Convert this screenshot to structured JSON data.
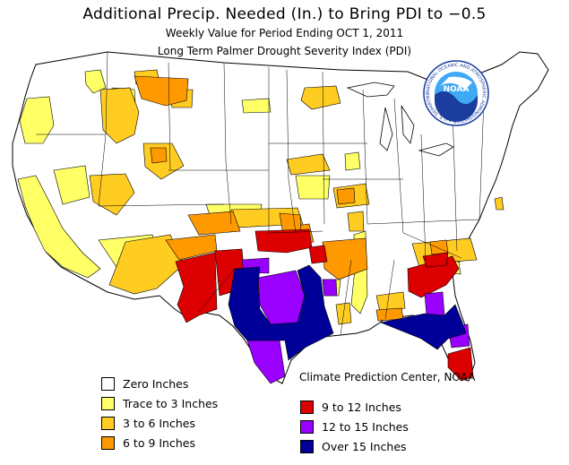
{
  "header": {
    "title": "Additional Precip. Needed (In.) to Bring PDI to −0.5",
    "subtitle": "Weekly Value for Period Ending OCT  1, 2011",
    "index_name": "Long Term Palmer Drought Severity Index (PDI)"
  },
  "logo": {
    "text": "NOAA",
    "ring_text": "NATIONAL OCEANIC AND ATMOSPHERIC ADMINISTRATION • U.S. DEPARTMENT OF COMMERCE •"
  },
  "credit": "Climate Prediction Center, NOAA",
  "legend": {
    "left": [
      {
        "label": "Zero Inches",
        "color": "#ffffff"
      },
      {
        "label": "Trace to 3 Inches",
        "color": "#ffff66"
      },
      {
        "label": "3 to 6 Inches",
        "color": "#ffcc22"
      },
      {
        "label": "6 to 9 Inches",
        "color": "#ff9900"
      }
    ],
    "right": [
      {
        "label": "9 to 12 Inches",
        "color": "#dd0000"
      },
      {
        "label": "12 to 15 Inches",
        "color": "#9900ff"
      },
      {
        "label": "Over 15 Inches",
        "color": "#000099"
      }
    ]
  },
  "colors": {
    "zero": "#ffffff",
    "trace_3": "#ffff66",
    "in_3_6": "#ffcc22",
    "in_6_9": "#ff9900",
    "in_9_12": "#dd0000",
    "in_12_15": "#9900ff",
    "over_15": "#000099",
    "borders": "#000000",
    "noaa_blue": "#1a3d9e",
    "noaa_sky": "#3fa9f5"
  }
}
